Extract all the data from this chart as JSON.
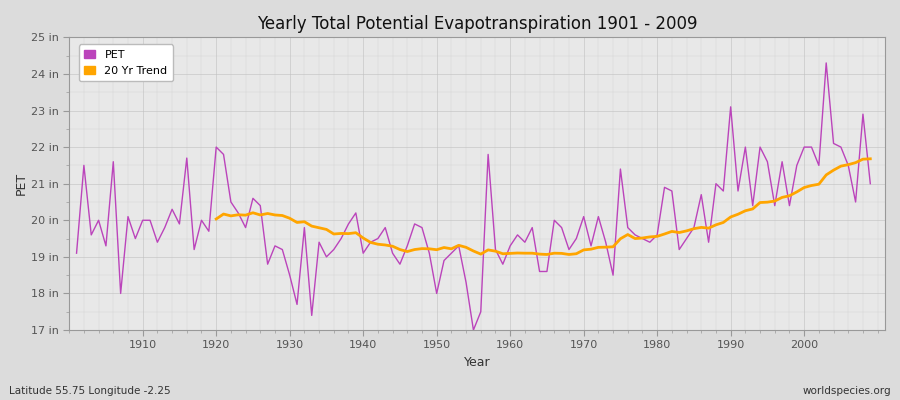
{
  "title": "Yearly Total Potential Evapotranspiration 1901 - 2009",
  "xlabel": "Year",
  "ylabel": "PET",
  "footnote_left": "Latitude 55.75 Longitude -2.25",
  "footnote_right": "worldspecies.org",
  "pet_color": "#BB44BB",
  "trend_color": "#FFA500",
  "fig_bg_color": "#DCDCDC",
  "plot_bg_color": "#E8E8E8",
  "ylim": [
    17,
    25
  ],
  "ytick_labels": [
    "17 in",
    "18 in",
    "19 in",
    "20 in",
    "21 in",
    "22 in",
    "23 in",
    "24 in",
    "25 in"
  ],
  "ytick_values": [
    17,
    18,
    19,
    20,
    21,
    22,
    23,
    24,
    25
  ],
  "years": [
    1901,
    1902,
    1903,
    1904,
    1905,
    1906,
    1907,
    1908,
    1909,
    1910,
    1911,
    1912,
    1913,
    1914,
    1915,
    1916,
    1917,
    1918,
    1919,
    1920,
    1921,
    1922,
    1923,
    1924,
    1925,
    1926,
    1927,
    1928,
    1929,
    1930,
    1931,
    1932,
    1933,
    1934,
    1935,
    1936,
    1937,
    1938,
    1939,
    1940,
    1941,
    1942,
    1943,
    1944,
    1945,
    1946,
    1947,
    1948,
    1949,
    1950,
    1951,
    1952,
    1953,
    1954,
    1955,
    1956,
    1957,
    1958,
    1959,
    1960,
    1961,
    1962,
    1963,
    1964,
    1965,
    1966,
    1967,
    1968,
    1969,
    1970,
    1971,
    1972,
    1973,
    1974,
    1975,
    1976,
    1977,
    1978,
    1979,
    1980,
    1981,
    1982,
    1983,
    1984,
    1985,
    1986,
    1987,
    1988,
    1989,
    1990,
    1991,
    1992,
    1993,
    1994,
    1995,
    1996,
    1997,
    1998,
    1999,
    2000,
    2001,
    2002,
    2003,
    2004,
    2005,
    2006,
    2007,
    2008,
    2009
  ],
  "pet_values": [
    19.1,
    21.5,
    19.6,
    20.0,
    19.3,
    21.6,
    18.0,
    20.1,
    19.5,
    20.0,
    20.0,
    19.4,
    19.8,
    20.3,
    19.9,
    21.7,
    19.2,
    20.0,
    19.7,
    22.0,
    21.8,
    20.5,
    20.2,
    19.8,
    20.6,
    20.4,
    18.8,
    19.3,
    19.2,
    18.5,
    17.7,
    19.8,
    17.4,
    19.4,
    19.0,
    19.2,
    19.5,
    19.9,
    20.2,
    19.1,
    19.4,
    19.5,
    19.8,
    19.1,
    18.8,
    19.3,
    19.9,
    19.8,
    19.1,
    18.0,
    18.9,
    19.1,
    19.3,
    18.3,
    17.0,
    17.5,
    21.8,
    19.2,
    18.8,
    19.3,
    19.6,
    19.4,
    19.8,
    18.6,
    18.6,
    20.0,
    19.8,
    19.2,
    19.5,
    20.1,
    19.3,
    20.1,
    19.4,
    18.5,
    21.4,
    19.8,
    19.6,
    19.5,
    19.4,
    19.6,
    20.9,
    20.8,
    19.2,
    19.5,
    19.8,
    20.7,
    19.4,
    21.0,
    20.8,
    23.1,
    20.8,
    22.0,
    20.4,
    22.0,
    21.6,
    20.4,
    21.6,
    20.4,
    21.5,
    22.0,
    22.0,
    21.5,
    24.3,
    22.1,
    22.0,
    21.5,
    20.5,
    22.9,
    21.0
  ],
  "legend_entries": [
    "PET",
    "20 Yr Trend"
  ]
}
